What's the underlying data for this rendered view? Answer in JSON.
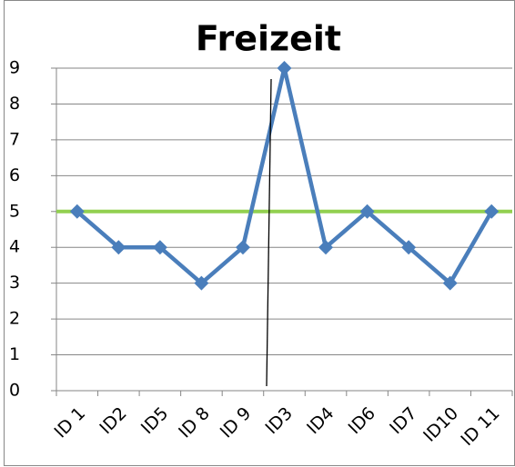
{
  "chart_data": {
    "type": "line",
    "title": "Freizeit",
    "categories": [
      "ID 1",
      "ID2",
      "ID5",
      "ID 8",
      "ID 9",
      "ID3",
      "ID4",
      "ID6",
      "ID7",
      "ID10",
      "ID 11"
    ],
    "series": [
      {
        "color": "#4a7ebb",
        "values": [
          5,
          4,
          4,
          3,
          4,
          9,
          4,
          5,
          4,
          3,
          5
        ]
      }
    ],
    "reference_line": {
      "value": 5,
      "color": "#92d050"
    },
    "ylim": [
      0,
      9
    ],
    "yticks": [
      0,
      1,
      2,
      3,
      4,
      5,
      6,
      7,
      8,
      9
    ],
    "grid": true
  }
}
